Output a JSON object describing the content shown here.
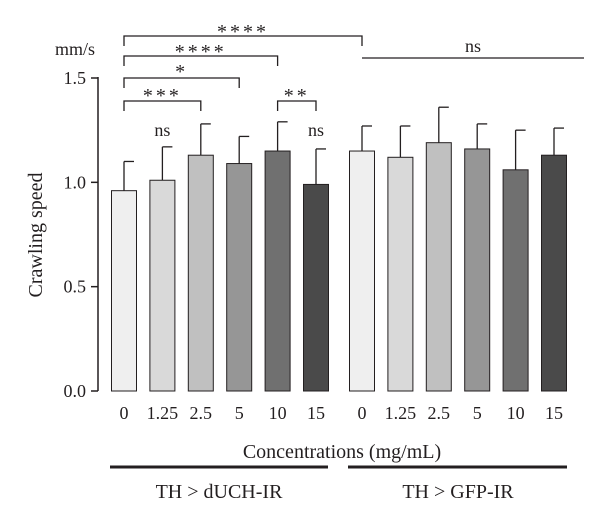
{
  "chart_data": {
    "type": "bar",
    "title": "",
    "unit": "mm/s",
    "ylabel": "Crawling speed",
    "xlabel": "Concentrations (mg/mL)",
    "ylim": [
      0.0,
      1.5
    ],
    "yticks": [
      "0.0",
      "0.5",
      "1.0",
      "1.5"
    ],
    "grid": false,
    "groups": [
      {
        "name": "TH > dUCH-IR",
        "categories": [
          "0",
          "1.25",
          "2.5",
          "5",
          "10",
          "15"
        ],
        "values": [
          0.96,
          1.01,
          1.13,
          1.09,
          1.15,
          0.99
        ],
        "errors": [
          0.14,
          0.16,
          0.15,
          0.13,
          0.14,
          0.17
        ],
        "colors": [
          "#efefef",
          "#d9d9d9",
          "#c0c0c0",
          "#969696",
          "#707070",
          "#4a4a4a"
        ]
      },
      {
        "name": "TH > GFP-IR",
        "categories": [
          "0",
          "1.25",
          "2.5",
          "5",
          "10",
          "15"
        ],
        "values": [
          1.15,
          1.12,
          1.19,
          1.16,
          1.06,
          1.13
        ],
        "errors": [
          0.12,
          0.15,
          0.17,
          0.12,
          0.19,
          0.13
        ],
        "colors": [
          "#efefef",
          "#d9d9d9",
          "#c0c0c0",
          "#969696",
          "#707070",
          "#4a4a4a"
        ]
      }
    ],
    "above_bar_labels": [
      {
        "group": 0,
        "index": 1,
        "text": "ns"
      },
      {
        "group": 0,
        "index": 5,
        "text": "ns"
      }
    ],
    "comparisons": [
      {
        "from": [
          0,
          0
        ],
        "to": [
          1,
          0
        ],
        "text": "****"
      },
      {
        "from": [
          0,
          0
        ],
        "to": [
          0,
          4
        ],
        "text": "****"
      },
      {
        "from": [
          0,
          0
        ],
        "to": [
          0,
          3
        ],
        "text": "*"
      },
      {
        "from": [
          0,
          0
        ],
        "to": [
          0,
          2
        ],
        "text": "***"
      },
      {
        "from": [
          0,
          4
        ],
        "to": [
          0,
          5
        ],
        "text": "**"
      },
      {
        "from": [
          1,
          0
        ],
        "to": [
          1,
          5
        ],
        "text": "ns",
        "style": "line"
      }
    ]
  }
}
